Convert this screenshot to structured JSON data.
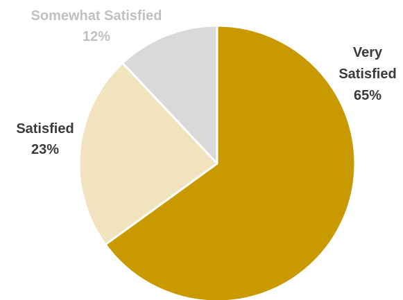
{
  "chart_data": {
    "type": "pie",
    "slices": [
      {
        "label": "Very Satisfied",
        "value": 65,
        "value_label": "65%",
        "color": "#c89a00",
        "text_color": "#3a3a3a"
      },
      {
        "label": "Satisfied",
        "value": 23,
        "value_label": "23%",
        "color": "#f0e3bd",
        "text_color": "#3a3a3a"
      },
      {
        "label": "Somewhat Satisfied",
        "value": 12,
        "value_label": "12%",
        "color": "#d9d9d9",
        "text_color": "#c0c0c0"
      }
    ],
    "start": "top",
    "direction": "clockwise"
  }
}
